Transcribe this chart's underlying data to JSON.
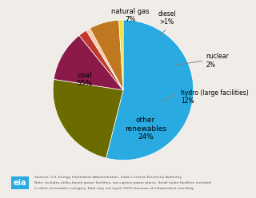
{
  "slices": [
    {
      "label": "coal\n55%",
      "value": 55,
      "color": "#29ABE2"
    },
    {
      "label": "other\nrenewables\n24%",
      "value": 24,
      "color": "#6B6B00"
    },
    {
      "label": "hydro (large facilities)\n12%",
      "value": 12,
      "color": "#8B1A4A"
    },
    {
      "label": "nuclear\n2%",
      "value": 2,
      "color": "#C0392B"
    },
    {
      "label": "diesel\n>1%",
      "value": 1,
      "color": "#F5CBA7"
    },
    {
      "label": "natural gas\n7%",
      "value": 7,
      "color": "#C07820"
    },
    {
      "label": "",
      "value": 1,
      "color": "#F0E040"
    }
  ],
  "note_line1": "Sources: U.S. Energy Information Administration, India's Central Electricity Authority",
  "note_line2": "Note: Includes utility-based power facilities, not captive power plants. Small hydro facilities included",
  "note_line3": "in other renewables category. Total may not equal 100% because of independent rounding.",
  "bg_color": "#F0EDE8"
}
